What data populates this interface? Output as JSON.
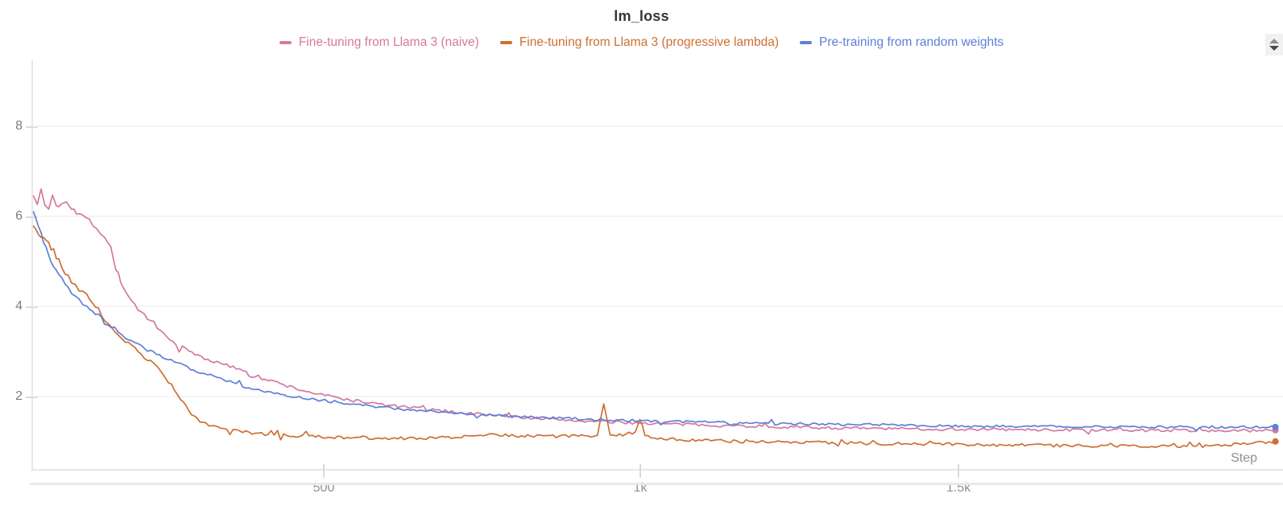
{
  "panel": {
    "title": "lm_loss"
  },
  "legend": {
    "items": [
      {
        "label": "Fine-tuning from Llama 3 (naive)",
        "color": "#d6789f"
      },
      {
        "label": "Fine-tuning from Llama 3 (progressive lambda)",
        "color": "#cd6f32"
      },
      {
        "label": "Pre-training from random weights",
        "color": "#5e80d5"
      }
    ]
  },
  "axes": {
    "y_ticks": [
      {
        "label": "8",
        "value": 8
      },
      {
        "label": "6",
        "value": 6
      },
      {
        "label": "4",
        "value": 4
      },
      {
        "label": "2",
        "value": 2
      }
    ],
    "x_ticks": [
      {
        "label": "500",
        "value": 500
      },
      {
        "label": "1k",
        "value": 1000
      },
      {
        "label": "1.5k",
        "value": 1500
      }
    ],
    "x_axis_name": "Step"
  },
  "controls": {
    "stepper_icons": [
      "up-triangle",
      "down-triangle"
    ]
  },
  "chart_data": {
    "type": "line",
    "title": "lm_loss",
    "xlabel": "Step",
    "ylabel": "",
    "x_range": [
      38,
      2012
    ],
    "y_range": [
      0.39,
      9.46
    ],
    "grid": "horizontal-only",
    "grid_values": [
      2,
      4,
      6,
      8
    ],
    "legend_position": "top-center",
    "line_width": 1.7,
    "series": [
      {
        "name": "Fine-tuning from Llama 3 (naive)",
        "color": "#d6789f",
        "noise": 0.042,
        "end_dot": true,
        "points": [
          [
            40,
            6.45
          ],
          [
            46,
            6.2
          ],
          [
            52,
            6.6
          ],
          [
            58,
            6.25
          ],
          [
            64,
            6.15
          ],
          [
            70,
            6.5
          ],
          [
            76,
            6.2
          ],
          [
            84,
            6.3
          ],
          [
            92,
            6.35
          ],
          [
            100,
            6.2
          ],
          [
            108,
            6.1
          ],
          [
            118,
            6.0
          ],
          [
            128,
            5.9
          ],
          [
            140,
            5.75
          ],
          [
            152,
            5.55
          ],
          [
            162,
            5.3
          ],
          [
            170,
            4.85
          ],
          [
            178,
            4.55
          ],
          [
            190,
            4.2
          ],
          [
            205,
            3.95
          ],
          [
            220,
            3.7
          ],
          [
            240,
            3.45
          ],
          [
            260,
            3.2
          ],
          [
            285,
            3.0
          ],
          [
            310,
            2.85
          ],
          [
            340,
            2.7
          ],
          [
            370,
            2.6
          ],
          [
            400,
            2.4
          ],
          [
            430,
            2.28
          ],
          [
            460,
            2.15
          ],
          [
            490,
            2.05
          ],
          [
            520,
            1.97
          ],
          [
            550,
            1.9
          ],
          [
            590,
            1.82
          ],
          [
            630,
            1.76
          ],
          [
            670,
            1.7
          ],
          [
            710,
            1.65
          ],
          [
            750,
            1.6
          ],
          [
            800,
            1.55
          ],
          [
            850,
            1.5
          ],
          [
            900,
            1.46
          ],
          [
            950,
            1.43
          ],
          [
            1000,
            1.41
          ],
          [
            1060,
            1.38
          ],
          [
            1120,
            1.36
          ],
          [
            1180,
            1.34
          ],
          [
            1240,
            1.32
          ],
          [
            1300,
            1.3
          ],
          [
            1360,
            1.29
          ],
          [
            1420,
            1.28
          ],
          [
            1480,
            1.27
          ],
          [
            1540,
            1.27
          ],
          [
            1600,
            1.26
          ],
          [
            1660,
            1.26
          ],
          [
            1720,
            1.25
          ],
          [
            1780,
            1.25
          ],
          [
            1840,
            1.25
          ],
          [
            1900,
            1.24
          ],
          [
            1950,
            1.24
          ],
          [
            2000,
            1.25
          ]
        ]
      },
      {
        "name": "Fine-tuning from Llama 3 (progressive lambda)",
        "color": "#cd6f32",
        "noise": 0.05,
        "end_dot": true,
        "points": [
          [
            40,
            5.78
          ],
          [
            48,
            5.62
          ],
          [
            56,
            5.5
          ],
          [
            64,
            5.38
          ],
          [
            72,
            5.22
          ],
          [
            80,
            5.0
          ],
          [
            90,
            4.75
          ],
          [
            100,
            4.55
          ],
          [
            112,
            4.38
          ],
          [
            124,
            4.22
          ],
          [
            138,
            4.0
          ],
          [
            152,
            3.72
          ],
          [
            168,
            3.45
          ],
          [
            185,
            3.22
          ],
          [
            205,
            3.0
          ],
          [
            225,
            2.78
          ],
          [
            242,
            2.55
          ],
          [
            258,
            2.25
          ],
          [
            272,
            1.95
          ],
          [
            285,
            1.7
          ],
          [
            298,
            1.5
          ],
          [
            312,
            1.38
          ],
          [
            330,
            1.3
          ],
          [
            350,
            1.25
          ],
          [
            375,
            1.2
          ],
          [
            405,
            1.16
          ],
          [
            440,
            1.13
          ],
          [
            480,
            1.11
          ],
          [
            530,
            1.09
          ],
          [
            580,
            1.08
          ],
          [
            640,
            1.07
          ],
          [
            700,
            1.1
          ],
          [
            760,
            1.15
          ],
          [
            820,
            1.12
          ],
          [
            880,
            1.12
          ],
          [
            930,
            1.12
          ],
          [
            940,
            1.85
          ],
          [
            950,
            1.12
          ],
          [
            990,
            1.2
          ],
          [
            997,
            1.5
          ],
          [
            1005,
            1.1
          ],
          [
            1050,
            1.05
          ],
          [
            1110,
            1.02
          ],
          [
            1170,
            1.0
          ],
          [
            1230,
            0.99
          ],
          [
            1290,
            0.98
          ],
          [
            1350,
            0.96
          ],
          [
            1410,
            0.95
          ],
          [
            1470,
            0.95
          ],
          [
            1530,
            0.93
          ],
          [
            1590,
            0.92
          ],
          [
            1650,
            0.91
          ],
          [
            1710,
            0.9
          ],
          [
            1770,
            0.9
          ],
          [
            1830,
            0.89
          ],
          [
            1890,
            0.9
          ],
          [
            1950,
            0.95
          ],
          [
            2000,
            1.0
          ]
        ]
      },
      {
        "name": "Pre-training from random weights",
        "color": "#5e80d5",
        "noise": 0.038,
        "end_dot": true,
        "points": [
          [
            40,
            6.1
          ],
          [
            48,
            5.75
          ],
          [
            56,
            5.45
          ],
          [
            64,
            5.15
          ],
          [
            72,
            4.9
          ],
          [
            80,
            4.7
          ],
          [
            90,
            4.5
          ],
          [
            100,
            4.32
          ],
          [
            112,
            4.15
          ],
          [
            124,
            4.0
          ],
          [
            138,
            3.85
          ],
          [
            152,
            3.68
          ],
          [
            168,
            3.5
          ],
          [
            185,
            3.32
          ],
          [
            205,
            3.15
          ],
          [
            225,
            3.0
          ],
          [
            248,
            2.85
          ],
          [
            272,
            2.7
          ],
          [
            298,
            2.57
          ],
          [
            325,
            2.44
          ],
          [
            355,
            2.3
          ],
          [
            385,
            2.18
          ],
          [
            415,
            2.1
          ],
          [
            445,
            2.02
          ],
          [
            480,
            1.94
          ],
          [
            515,
            1.88
          ],
          [
            550,
            1.82
          ],
          [
            590,
            1.76
          ],
          [
            630,
            1.71
          ],
          [
            670,
            1.67
          ],
          [
            710,
            1.63
          ],
          [
            750,
            1.6
          ],
          [
            800,
            1.56
          ],
          [
            850,
            1.53
          ],
          [
            900,
            1.5
          ],
          [
            950,
            1.48
          ],
          [
            1000,
            1.46
          ],
          [
            1060,
            1.44
          ],
          [
            1120,
            1.42
          ],
          [
            1180,
            1.4
          ],
          [
            1240,
            1.39
          ],
          [
            1300,
            1.38
          ],
          [
            1360,
            1.37
          ],
          [
            1420,
            1.36
          ],
          [
            1480,
            1.35
          ],
          [
            1540,
            1.34
          ],
          [
            1600,
            1.34
          ],
          [
            1660,
            1.33
          ],
          [
            1720,
            1.33
          ],
          [
            1780,
            1.32
          ],
          [
            1840,
            1.32
          ],
          [
            1900,
            1.32
          ],
          [
            1950,
            1.32
          ],
          [
            2000,
            1.32
          ]
        ]
      }
    ]
  }
}
